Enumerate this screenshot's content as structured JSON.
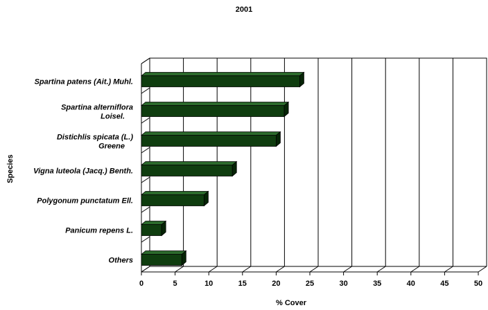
{
  "chart_data": {
    "type": "bar",
    "orientation": "horizontal",
    "title": "2001",
    "xlabel": "% Cover",
    "ylabel": "Species",
    "categories": [
      "Spartina patens (Ait.) Muhl.",
      "Spartina alterniflora Loisel.",
      "Distichlis spicata (L.) Greene",
      "Vigna luteola (Jacq.) Benth.",
      "Polygonum punctatum Ell.",
      "Panicum repens L.",
      "Others"
    ],
    "values": [
      23.5,
      21.2,
      20.0,
      13.5,
      9.3,
      3.0,
      6.0
    ],
    "xlim": [
      0,
      50
    ],
    "xticks": [
      0,
      5,
      10,
      15,
      20,
      25,
      30,
      35,
      40,
      45,
      50
    ],
    "grid": "vertical",
    "legend": "none",
    "bar_color": "#0f3d0f",
    "bar_top_color": "#2c6a2c",
    "bar_side_color": "#062406"
  }
}
